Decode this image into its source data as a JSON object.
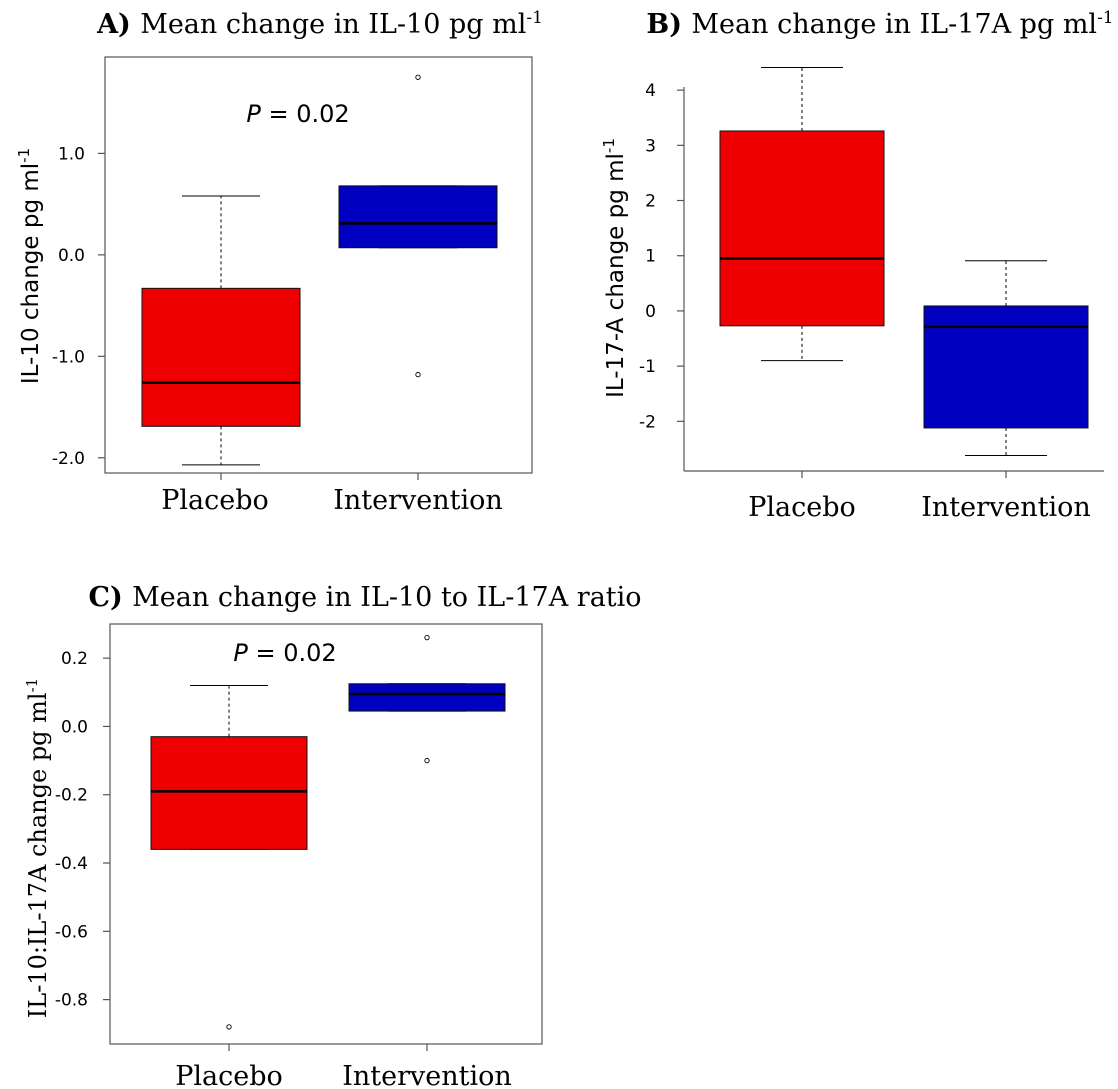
{
  "chart_data": [
    {
      "type": "boxplot",
      "panel_letter": "A)",
      "title_text": "Mean change in IL-10 pg ml",
      "title_sup": "-1",
      "ylabel": "IL-10 change pg ml",
      "ylabel_sup": "-1",
      "ylim": [
        -2.15,
        1.95
      ],
      "yticks": [
        -2.0,
        -1.0,
        0.0,
        1.0
      ],
      "ytick_labels": [
        "-2.0",
        "-1.0",
        "0.0",
        "1.0"
      ],
      "categories": [
        "Placebo",
        "Intervention"
      ],
      "annotation": {
        "p_italic": "P",
        "p_text": " = 0.02"
      },
      "boxes": [
        {
          "name": "Placebo",
          "color": "#ee0000",
          "whisker_low": -2.07,
          "q1": -1.69,
          "median": -1.26,
          "q3": -0.33,
          "whisker_high": 0.58,
          "outliers": []
        },
        {
          "name": "Intervention",
          "color": "#0000c0",
          "whisker_low": 0.07,
          "q1": 0.07,
          "median": 0.31,
          "q3": 0.68,
          "whisker_high": 0.68,
          "outliers": [
            1.75,
            -1.18
          ]
        }
      ]
    },
    {
      "type": "boxplot",
      "panel_letter": "B)",
      "title_text": "Mean change in IL-17A pg ml",
      "title_sup": "-1",
      "ylabel": "IL-17-A change pg ml",
      "ylabel_sup": "-1",
      "ylim": [
        -2.9,
        4.6
      ],
      "yticks": [
        -2,
        -1,
        0,
        1,
        2,
        3,
        4
      ],
      "ytick_labels": [
        "-2",
        "-1",
        "0",
        "1",
        "2",
        "3",
        "4"
      ],
      "categories": [
        "Placebo",
        "Intervention"
      ],
      "boxes": [
        {
          "name": "Placebo",
          "color": "#ee0000",
          "whisker_low": -0.9,
          "q1": -0.27,
          "median": 0.95,
          "q3": 3.26,
          "whisker_high": 4.41,
          "outliers": []
        },
        {
          "name": "Intervention",
          "color": "#0000c0",
          "whisker_low": -2.62,
          "q1": -2.12,
          "median": -0.29,
          "q3": 0.09,
          "whisker_high": 0.91,
          "outliers": []
        }
      ]
    },
    {
      "type": "boxplot",
      "panel_letter": "C)",
      "title_text": "Mean change in IL-10 to IL-17A ratio",
      "title_sup": "",
      "ylabel": "IL-10:IL-17A change pg ml",
      "ylabel_sup": "-1",
      "ylim": [
        -0.93,
        0.3
      ],
      "yticks": [
        -0.8,
        -0.6,
        -0.4,
        -0.2,
        0.0,
        0.2
      ],
      "ytick_labels": [
        "-0.8",
        "-0.6",
        "-0.4",
        "-0.2",
        "0.0",
        "0.2"
      ],
      "categories": [
        "Placebo",
        "Intervention"
      ],
      "annotation": {
        "p_italic": "P",
        "p_text": " = 0.02"
      },
      "boxes": [
        {
          "name": "Placebo",
          "color": "#ee0000",
          "whisker_low": -0.36,
          "q1": -0.36,
          "median": -0.19,
          "q3": -0.03,
          "whisker_high": 0.12,
          "outliers": [
            -0.88
          ]
        },
        {
          "name": "Intervention",
          "color": "#0000c0",
          "whisker_low": 0.045,
          "q1": 0.045,
          "median": 0.095,
          "q3": 0.125,
          "whisker_high": 0.125,
          "outliers": [
            0.26,
            -0.1
          ]
        }
      ]
    }
  ]
}
